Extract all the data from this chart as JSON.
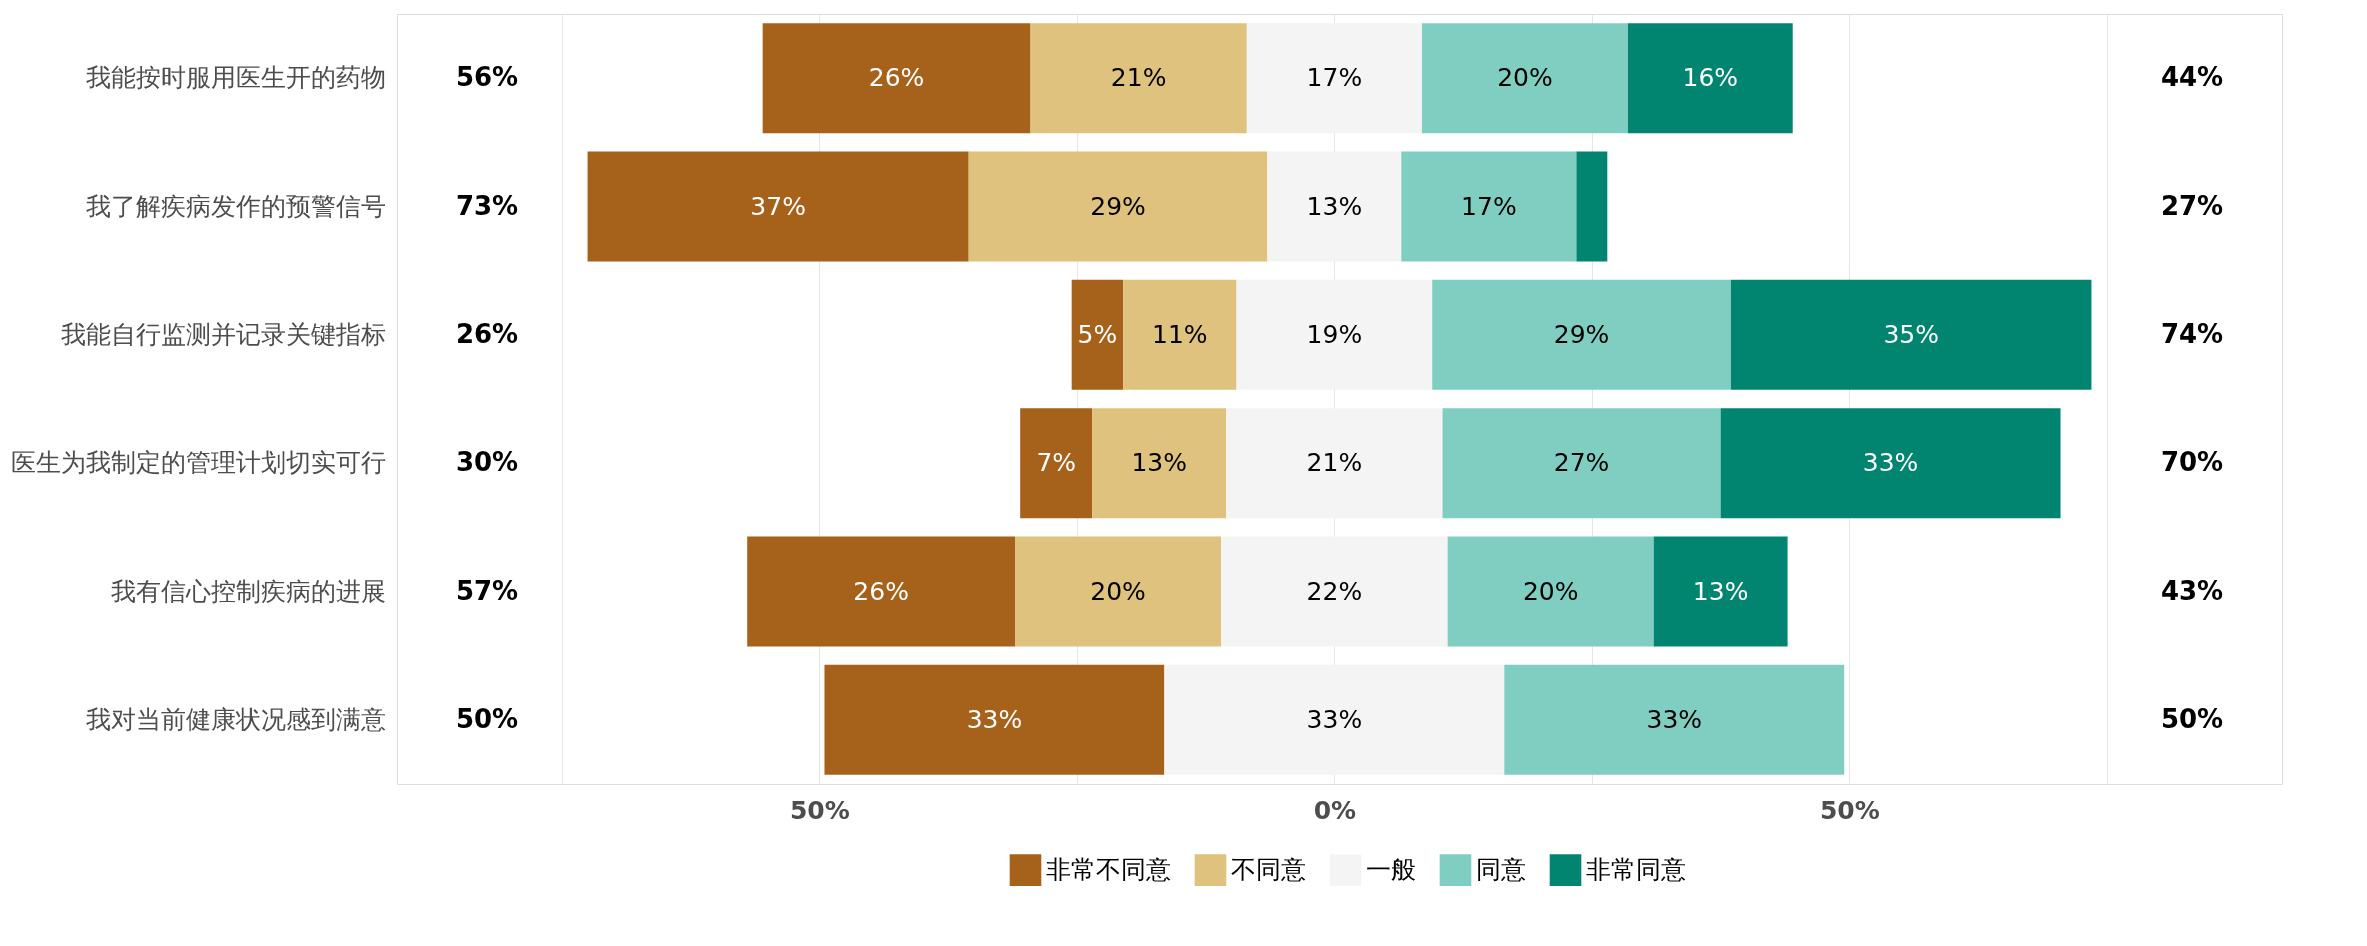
{
  "chart_data": {
    "type": "bar",
    "orientation": "horizontal",
    "categories": [
      "我能按时服用医生开的药物",
      "我了解疾病发作的预警信号",
      "我能自行监测并记录关键指标",
      "医生为我制定的管理计划切实可行",
      "我有信心控制疾病的进展",
      "我对当前健康状况感到满意"
    ],
    "series": [
      {
        "name": "非常不同意",
        "color": "#a6611a",
        "base": [
          -55.5,
          -72.5,
          -25.5,
          -30.5,
          -57,
          -49.5
        ],
        "values": [
          26,
          37,
          5,
          7,
          26,
          33
        ],
        "value_labels": [
          "26%",
          "37%",
          "5%",
          "7%",
          "26%",
          "33%"
        ]
      },
      {
        "name": "不同意",
        "color": "#dfc27d",
        "base": [
          -29.5,
          -35.5,
          -20.5,
          -23.5,
          -31,
          null
        ],
        "values": [
          21,
          29,
          11,
          13,
          20,
          null
        ],
        "value_labels": [
          "21%",
          "29%",
          "11%",
          "13%",
          "20%",
          null
        ]
      },
      {
        "name": "一般",
        "color": "#f4f4f4",
        "base": [
          -8.5,
          -6.5,
          -9.5,
          -10.5,
          -11,
          -16.5
        ],
        "values": [
          17,
          13,
          19,
          21,
          22,
          33
        ],
        "value_labels": [
          "17%",
          "13%",
          "19%",
          "21%",
          "22%",
          "33%"
        ]
      },
      {
        "name": "同意",
        "color": "#80cdc1",
        "base": [
          8.5,
          6.5,
          9.5,
          10.5,
          11,
          16.5
        ],
        "values": [
          20,
          17,
          29,
          27,
          20,
          33
        ],
        "value_labels": [
          "20%",
          "17%",
          "29%",
          "27%",
          "20%",
          "33%"
        ]
      },
      {
        "name": "非常同意",
        "color": "#018571",
        "base": [
          28.5,
          23.5,
          38.5,
          37.5,
          31,
          null
        ],
        "values": [
          16,
          3,
          35,
          33,
          13,
          null
        ],
        "value_labels": [
          "16%",
          null,
          "35%",
          "33%",
          "13%",
          null
        ]
      }
    ],
    "xlim": [
      -91,
      92
    ],
    "xticks": [
      {
        "value": -75,
        "label": null
      },
      {
        "value": -50,
        "label": "50%"
      },
      {
        "value": -25,
        "label": null
      },
      {
        "value": 0,
        "label": "0%"
      },
      {
        "value": 25,
        "label": null
      },
      {
        "value": 50,
        "label": "50%"
      },
      {
        "value": 75,
        "label": null
      }
    ],
    "annotations": [
      "56%",
      "73%",
      "26%",
      "30%",
      "57%",
      "50%",
      "44%",
      "27%",
      "74%",
      "70%",
      "43%",
      "50%"
    ],
    "grid": "x",
    "legend": "bottom"
  }
}
